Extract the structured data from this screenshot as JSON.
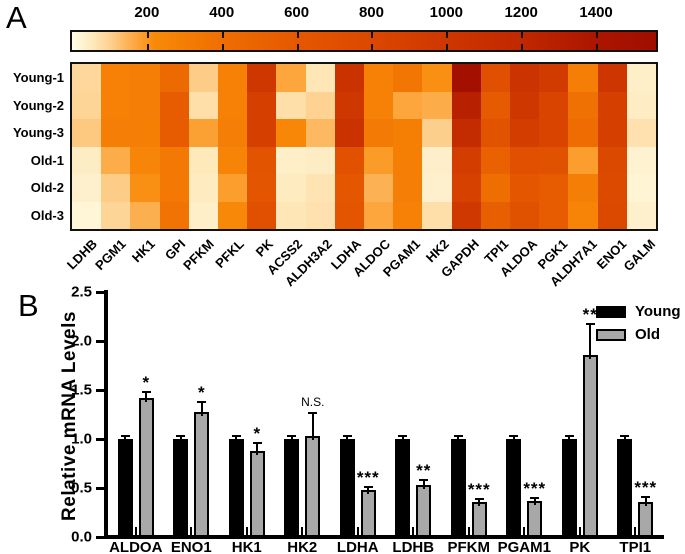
{
  "figure": {
    "panel_a_label": "A",
    "panel_b_label": "B"
  },
  "chart_data": [
    {
      "type": "heatmap",
      "rows": [
        "Young-1",
        "Young-2",
        "Young-3",
        "Old-1",
        "Old-2",
        "Old-3"
      ],
      "columns": [
        "LDHB",
        "PGM1",
        "HK1",
        "GPI",
        "PFKM",
        "PFKL",
        "PK",
        "ACSS2",
        "ALDH3A2",
        "LDHA",
        "ALDOC",
        "PGAM1",
        "HK2",
        "GAPDH",
        "TPI1",
        "ALDOA",
        "PGK1",
        "ALDH7A1",
        "ENO1",
        "GALM"
      ],
      "values": [
        [
          90,
          280,
          290,
          450,
          110,
          280,
          1000,
          170,
          60,
          1060,
          280,
          350,
          210,
          1520,
          700,
          1050,
          950,
          290,
          1020,
          40
        ],
        [
          95,
          280,
          290,
          560,
          75,
          280,
          900,
          75,
          100,
          1000,
          280,
          170,
          160,
          1290,
          580,
          1000,
          830,
          380,
          900,
          45
        ],
        [
          115,
          290,
          300,
          560,
          180,
          290,
          900,
          240,
          140,
          1060,
          320,
          300,
          105,
          1160,
          660,
          920,
          830,
          420,
          900,
          70
        ],
        [
          45,
          160,
          250,
          330,
          55,
          260,
          650,
          40,
          45,
          690,
          190,
          300,
          38,
          920,
          520,
          700,
          680,
          185,
          800,
          30
        ],
        [
          35,
          110,
          210,
          330,
          50,
          185,
          640,
          50,
          65,
          620,
          150,
          290,
          35,
          880,
          400,
          620,
          560,
          290,
          780,
          25
        ],
        [
          20,
          95,
          155,
          370,
          40,
          230,
          700,
          60,
          70,
          640,
          170,
          280,
          75,
          980,
          540,
          680,
          560,
          260,
          800,
          35
        ]
      ],
      "color_scale": {
        "min": 0,
        "max": 1560,
        "ticks": [
          200,
          400,
          600,
          800,
          1000,
          1200,
          1400
        ],
        "stops": [
          [
            0,
            "#fffde8"
          ],
          [
            50,
            "#feebc0"
          ],
          [
            100,
            "#fdd292"
          ],
          [
            160,
            "#fcac48"
          ],
          [
            220,
            "#f98a08"
          ],
          [
            400,
            "#ef6e02"
          ],
          [
            600,
            "#e55800"
          ],
          [
            800,
            "#db4800"
          ],
          [
            1000,
            "#ce3700"
          ],
          [
            1200,
            "#c02800"
          ],
          [
            1400,
            "#ac1600"
          ],
          [
            1560,
            "#a00e00"
          ]
        ]
      },
      "legend_position": "top-colorbar"
    },
    {
      "type": "bar",
      "ylabel": "Relative mRNA Levels",
      "ylim": [
        0,
        2.5
      ],
      "yticks": [
        0,
        0.5,
        1,
        1.5,
        2,
        2.5
      ],
      "categories": [
        "ALDOA",
        "ENO1",
        "HK1",
        "HK2",
        "LDHA",
        "LDHB",
        "PFKM",
        "PGAM1",
        "PK",
        "TPI1"
      ],
      "series": [
        {
          "name": "Young",
          "color": "#000000",
          "values": [
            1.0,
            1.0,
            1.0,
            1.0,
            1.0,
            1.0,
            1.0,
            1.0,
            1.0,
            1.0
          ],
          "errors": [
            0.02,
            0.02,
            0.02,
            0.02,
            0.02,
            0.02,
            0.02,
            0.02,
            0.02,
            0.02
          ]
        },
        {
          "name": "Old",
          "color": "#a8a8a8",
          "values": [
            1.42,
            1.28,
            0.88,
            1.03,
            0.48,
            0.53,
            0.36,
            0.37,
            1.86,
            0.36
          ],
          "errors": [
            0.05,
            0.09,
            0.07,
            0.23,
            0.02,
            0.04,
            0.015,
            0.02,
            0.3,
            0.04
          ]
        }
      ],
      "significance": [
        "*",
        "*",
        "*",
        "N.S.",
        "***",
        "**",
        "***",
        "***",
        "**",
        "***"
      ],
      "grid": false,
      "legend_position": "top-right"
    }
  ]
}
